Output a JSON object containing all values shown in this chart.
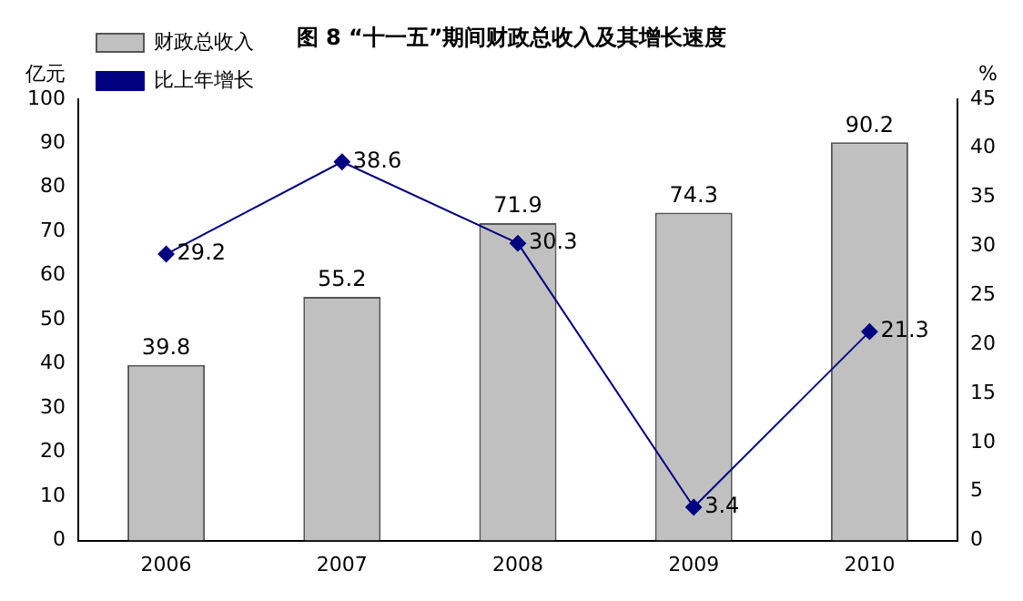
{
  "chart_data": {
    "type": "bar",
    "title": "图 8 “十一五”期间财政总收入及其增长速度",
    "ylabel": "亿元",
    "y2label": "%",
    "categories": [
      "2006",
      "2007",
      "2008",
      "2009",
      "2010"
    ],
    "series": [
      {
        "name": "财政总收入",
        "color": "#c0c0c0",
        "values": [
          39.8,
          55.2,
          71.9,
          74.3,
          90.2
        ]
      },
      {
        "name": "比上年增长",
        "type": "line",
        "axis": "y2",
        "color": "#000080",
        "values": [
          29.2,
          38.6,
          30.3,
          3.4,
          21.3
        ]
      }
    ],
    "ylim": [
      0,
      100
    ],
    "yticks": [
      0,
      10,
      20,
      30,
      40,
      50,
      60,
      70,
      80,
      90,
      100
    ],
    "y2lim": [
      0,
      45
    ],
    "y2ticks": [
      0,
      5,
      10,
      15,
      20,
      25,
      30,
      35,
      40,
      45
    ],
    "grid": false,
    "legend": "top left",
    "marker": "diamond",
    "line_style": "solid",
    "data_labels": true
  }
}
